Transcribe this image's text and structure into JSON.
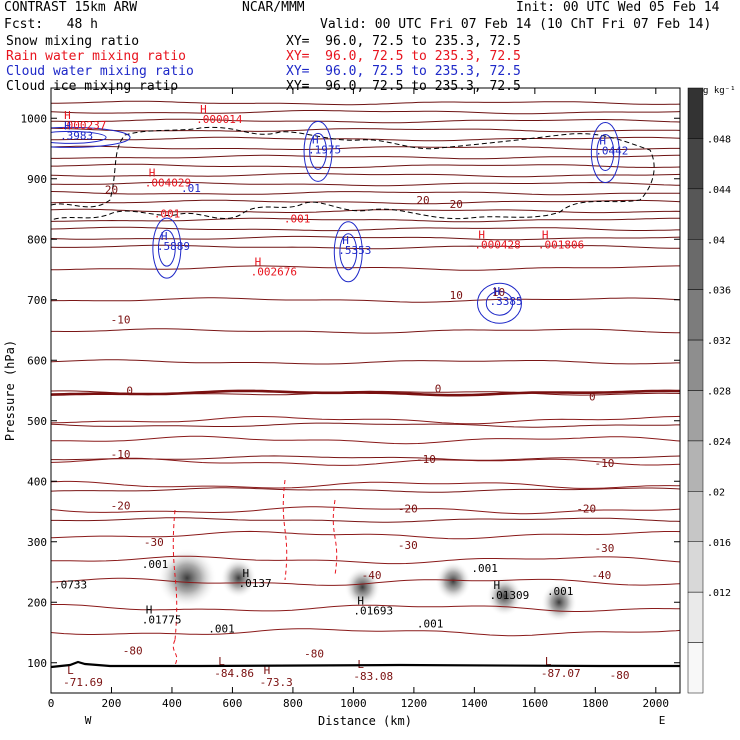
{
  "header": {
    "left_title": "CONTRAST 15km ARW",
    "center_title": "NCAR/MMM",
    "init": "Init: 00 UTC Wed 05 Feb 14",
    "fcst": "Fcst:   48 h",
    "valid": "Valid: 00 UTC Fri 07 Feb 14 (10 ChT Fri 07 Feb 14)",
    "fields": [
      {
        "name": "Snow mixing ratio",
        "xy": "XY=  96.0, 72.5 to 235.3, 72.5",
        "color": "#000000"
      },
      {
        "name": "Rain water mixing ratio",
        "xy": "XY=  96.0, 72.5 to 235.3, 72.5",
        "color": "#e8141e"
      },
      {
        "name": "Cloud water mixing ratio",
        "xy": "XY=  96.0, 72.5 to 235.3, 72.5",
        "color": "#1e28c8"
      },
      {
        "name": "Cloud ice mixing ratio",
        "xy": "XY=  96.0, 72.5 to 235.3, 72.5",
        "color": "#000000"
      }
    ]
  },
  "chart_data": {
    "type": "cross-section contour",
    "xlabel": "Distance (km)",
    "ylabel": "Pressure (hPa)",
    "xlim": [
      0,
      2080
    ],
    "ylim": [
      1050,
      50
    ],
    "x_ticks": [
      "0",
      "200",
      "400",
      "600",
      "800",
      "1000",
      "1200",
      "1400",
      "1600",
      "1800",
      "2000"
    ],
    "y_ticks": [
      "100",
      "200",
      "300",
      "400",
      "500",
      "600",
      "700",
      "800",
      "900",
      "1000"
    ],
    "end_labels": {
      "west": "W",
      "east": "E"
    },
    "colorbar": {
      "unit": "g kg⁻¹",
      "labels": [
        ".048",
        ".044",
        ".04",
        ".036",
        ".032",
        ".028",
        ".024",
        ".02",
        ".016",
        ".012"
      ],
      "shades": [
        "#333333",
        "#454545",
        "#575757",
        "#6a6a6a",
        "#7c7c7c",
        "#8e8e8e",
        "#a1a1a1",
        "#b3b3b3",
        "#c6c6c6",
        "#d8d8d8",
        "#eaeaea",
        "#f8f8f8"
      ]
    },
    "temperature_contour_labels": [
      {
        "text": "-80",
        "x": 270,
        "p": 120
      },
      {
        "text": "-80",
        "x": 870,
        "p": 115
      },
      {
        "text": "-80",
        "x": 1880,
        "p": 80
      },
      {
        "text": "-40",
        "x": 1060,
        "p": 245
      },
      {
        "text": "-40",
        "x": 1820,
        "p": 245
      },
      {
        "text": "-30",
        "x": 340,
        "p": 300
      },
      {
        "text": "-30",
        "x": 1180,
        "p": 295
      },
      {
        "text": "-30",
        "x": 1830,
        "p": 290
      },
      {
        "text": "-20",
        "x": 230,
        "p": 360
      },
      {
        "text": "-20",
        "x": 1180,
        "p": 355
      },
      {
        "text": "-20",
        "x": 1770,
        "p": 355
      },
      {
        "text": "-10",
        "x": 230,
        "p": 445
      },
      {
        "text": "-10",
        "x": 1240,
        "p": 437
      },
      {
        "text": "-10",
        "x": 1830,
        "p": 430
      },
      {
        "text": "0",
        "x": 260,
        "p": 550
      },
      {
        "text": "0",
        "x": 1280,
        "p": 553
      },
      {
        "text": "0",
        "x": 1790,
        "p": 540
      },
      {
        "text": "-10",
        "x": 230,
        "p": 667
      },
      {
        "text": "10",
        "x": 1340,
        "p": 708
      },
      {
        "text": "10",
        "x": 1480,
        "p": 713
      },
      {
        "text": "20",
        "x": 200,
        "p": 882
      },
      {
        "text": "20",
        "x": 1230,
        "p": 865
      },
      {
        "text": "20",
        "x": 1340,
        "p": 858
      }
    ],
    "temperature_extrema": [
      {
        "kind": "L",
        "value": "-71.69",
        "x": 40,
        "p": 75
      },
      {
        "kind": "H",
        "value": "-73.3",
        "x": 690,
        "p": 75
      },
      {
        "kind": "L",
        "value": "-84.86",
        "x": 540,
        "p": 90
      },
      {
        "kind": "L",
        "value": "-83.08",
        "x": 1000,
        "p": 85
      },
      {
        "kind": "L",
        "value": "-87.07",
        "x": 1620,
        "p": 90
      }
    ],
    "cloud_ice_labels": [
      {
        "kind": "H",
        "value": ".01775",
        "x": 300,
        "p": 165
      },
      {
        "kind": "H",
        "value": ".0137",
        "x": 620,
        "p": 225
      },
      {
        "kind": "H",
        "value": ".01693",
        "x": 1000,
        "p": 180
      },
      {
        "kind": "H",
        "value": ".01309",
        "x": 1450,
        "p": 205
      },
      {
        "kind": "",
        "value": ".001",
        "x": 520,
        "p": 150
      },
      {
        "kind": "",
        "value": ".001",
        "x": 1210,
        "p": 158
      },
      {
        "kind": "",
        "value": ".001",
        "x": 1640,
        "p": 212
      },
      {
        "kind": "",
        "value": ".001",
        "x": 300,
        "p": 257
      },
      {
        "kind": "",
        "value": ".001",
        "x": 1390,
        "p": 250
      },
      {
        "kind": "",
        "value": ".0733",
        "x": 10,
        "p": 223
      }
    ],
    "rain_water_labels": [
      {
        "kind": "H",
        "value": ".000237",
        "x": 30,
        "p": 982
      },
      {
        "kind": "H",
        "value": ".004029",
        "x": 310,
        "p": 887
      },
      {
        "kind": "H",
        "value": ".000014",
        "x": 480,
        "p": 992
      },
      {
        "kind": "H",
        "value": ".002676",
        "x": 660,
        "p": 740
      },
      {
        "kind": "H",
        "value": ".000428",
        "x": 1400,
        "p": 785
      },
      {
        "kind": "H",
        "value": ".001806",
        "x": 1610,
        "p": 785
      },
      {
        "kind": "",
        "value": ".001",
        "x": 340,
        "p": 836
      },
      {
        "kind": "",
        "value": ".001",
        "x": 770,
        "p": 828
      }
    ],
    "cloud_water_labels": [
      {
        "kind": "H",
        "value": ".3983",
        "x": 30,
        "p": 965
      },
      {
        "kind": "H",
        "value": ".5889",
        "x": 350,
        "p": 782
      },
      {
        "kind": "H",
        "value": ".5353",
        "x": 950,
        "p": 776
      },
      {
        "kind": "H",
        "value": ".3385",
        "x": 1450,
        "p": 691
      },
      {
        "kind": "H",
        "value": ".1975",
        "x": 850,
        "p": 942
      },
      {
        "kind": "H",
        "value": ".0442",
        "x": 1800,
        "p": 940
      },
      {
        "kind": "",
        "value": ".01",
        "x": 430,
        "p": 878
      }
    ],
    "snow_maxima": [
      {
        "x": 450,
        "p": 240
      },
      {
        "x": 620,
        "p": 240
      },
      {
        "x": 1030,
        "p": 225
      },
      {
        "x": 1330,
        "p": 235
      },
      {
        "x": 1500,
        "p": 210
      },
      {
        "x": 1680,
        "p": 200
      }
    ]
  }
}
